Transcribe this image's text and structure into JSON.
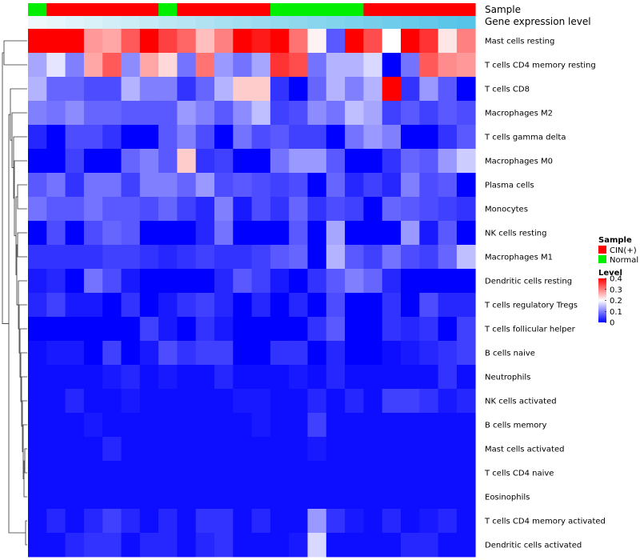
{
  "chart_data": {
    "type": "heatmap",
    "title": "",
    "annotation_labels": {
      "sample": "Sample",
      "gene_expression": "Gene expression level"
    },
    "columns": 24,
    "sample_groups": [
      "N",
      "C",
      "C",
      "C",
      "C",
      "C",
      "C",
      "N",
      "C",
      "C",
      "C",
      "C",
      "C",
      "N",
      "N",
      "N",
      "N",
      "N",
      "C",
      "C",
      "C",
      "C",
      "C",
      "C"
    ],
    "group_colors": {
      "C": "#ff0000",
      "N": "#00ee00"
    },
    "expression_gradient": [
      "#eef8fc",
      "#9fdcef",
      "#56c4e8"
    ],
    "rows": [
      "Mast cells resting",
      "T cells CD4 memory resting",
      "T cells CD8",
      "Macrophages M2",
      "T cells gamma delta",
      "Macrophages M0",
      "Plasma cells",
      "Monocytes",
      "NK cells resting",
      "Macrophages M1",
      "Dendritic cells resting",
      "T cells regulatory  Tregs",
      "T cells follicular helper",
      "B cells naive",
      "Neutrophils",
      "NK cells activated",
      "B cells memory",
      "Mast cells activated",
      "T cells CD4 naive",
      "Eosinophils",
      "T cells CD4 memory activated",
      "Dendritic cells activated"
    ],
    "values": [
      [
        0.4,
        0.4,
        0.4,
        0.28,
        0.27,
        0.33,
        0.4,
        0.35,
        0.32,
        0.25,
        0.3,
        0.4,
        0.38,
        0.4,
        0.31,
        0.21,
        0.07,
        0.4,
        0.34,
        0.2,
        0.4,
        0.36,
        0.22,
        0.3
      ],
      [
        0.13,
        0.18,
        0.1,
        0.27,
        0.33,
        0.11,
        0.27,
        0.23,
        0.09,
        0.31,
        0.12,
        0.09,
        0.13,
        0.36,
        0.34,
        0.09,
        0.14,
        0.14,
        0.17,
        0.0,
        0.09,
        0.33,
        0.29,
        0.28
      ],
      [
        0.14,
        0.08,
        0.08,
        0.06,
        0.06,
        0.14,
        0.1,
        0.1,
        0.04,
        0.08,
        0.14,
        0.24,
        0.24,
        0.04,
        0.0,
        0.08,
        0.14,
        0.1,
        0.14,
        0.4,
        0.04,
        0.12,
        0.07,
        0.0
      ],
      [
        0.1,
        0.09,
        0.11,
        0.08,
        0.08,
        0.07,
        0.07,
        0.07,
        0.12,
        0.1,
        0.07,
        0.11,
        0.15,
        0.05,
        0.06,
        0.11,
        0.09,
        0.15,
        0.13,
        0.05,
        0.07,
        0.05,
        0.07,
        0.06
      ],
      [
        0.03,
        0.0,
        0.06,
        0.06,
        0.04,
        0.0,
        0.0,
        0.07,
        0.1,
        0.06,
        0.0,
        0.09,
        0.06,
        0.07,
        0.05,
        0.05,
        0.0,
        0.09,
        0.12,
        0.1,
        0.0,
        0.0,
        0.04,
        0.07
      ],
      [
        0.0,
        0.0,
        0.05,
        0.0,
        0.0,
        0.08,
        0.1,
        0.07,
        0.24,
        0.04,
        0.05,
        0.0,
        0.0,
        0.09,
        0.12,
        0.12,
        0.07,
        0.0,
        0.0,
        0.04,
        0.08,
        0.07,
        0.12,
        0.16
      ],
      [
        0.07,
        0.09,
        0.04,
        0.09,
        0.09,
        0.05,
        0.1,
        0.1,
        0.08,
        0.12,
        0.06,
        0.07,
        0.06,
        0.05,
        0.06,
        0.0,
        0.08,
        0.03,
        0.05,
        0.03,
        0.1,
        0.06,
        0.07,
        0.0
      ],
      [
        0.09,
        0.07,
        0.07,
        0.09,
        0.07,
        0.07,
        0.06,
        0.08,
        0.05,
        0.03,
        0.1,
        0.02,
        0.06,
        0.04,
        0.08,
        0.04,
        0.06,
        0.05,
        0.0,
        0.08,
        0.07,
        0.06,
        0.05,
        0.04
      ],
      [
        0.0,
        0.06,
        0.0,
        0.06,
        0.08,
        0.07,
        0.0,
        0.0,
        0.0,
        0.03,
        0.09,
        0.0,
        0.0,
        0.0,
        0.07,
        0.0,
        0.13,
        0.0,
        0.0,
        0.0,
        0.12,
        0.02,
        0.07,
        0.0
      ],
      [
        0.04,
        0.04,
        0.04,
        0.04,
        0.05,
        0.05,
        0.04,
        0.03,
        0.04,
        0.05,
        0.04,
        0.04,
        0.05,
        0.07,
        0.08,
        0.0,
        0.14,
        0.07,
        0.05,
        0.09,
        0.06,
        0.05,
        0.08,
        0.15
      ],
      [
        0.02,
        0.03,
        0.0,
        0.09,
        0.06,
        0.02,
        0.0,
        0.0,
        0.0,
        0.0,
        0.03,
        0.07,
        0.05,
        0.02,
        0.0,
        0.04,
        0.07,
        0.1,
        0.08,
        0.03,
        0.0,
        0.0,
        0.0,
        0.0
      ],
      [
        0.03,
        0.05,
        0.02,
        0.02,
        0.0,
        0.04,
        0.0,
        0.02,
        0.04,
        0.05,
        0.03,
        0.0,
        0.03,
        0.0,
        0.03,
        0.0,
        0.06,
        0.0,
        0.0,
        0.04,
        0.0,
        0.06,
        0.03,
        0.03
      ],
      [
        0.0,
        0.0,
        0.0,
        0.0,
        0.0,
        0.0,
        0.05,
        0.02,
        0.0,
        0.04,
        0.02,
        0.0,
        0.0,
        0.0,
        0.0,
        0.04,
        0.07,
        0.0,
        0.0,
        0.04,
        0.03,
        0.04,
        0.0,
        0.05
      ],
      [
        0.01,
        0.02,
        0.02,
        0.0,
        0.05,
        0.0,
        0.02,
        0.06,
        0.04,
        0.05,
        0.05,
        0.0,
        0.0,
        0.04,
        0.04,
        0.0,
        0.03,
        0.0,
        0.0,
        0.01,
        0.02,
        0.03,
        0.04,
        0.05
      ],
      [
        0.01,
        0.01,
        0.01,
        0.01,
        0.02,
        0.03,
        0.01,
        0.02,
        0.01,
        0.01,
        0.03,
        0.01,
        0.01,
        0.01,
        0.02,
        0.01,
        0.03,
        0.01,
        0.01,
        0.01,
        0.01,
        0.01,
        0.04,
        0.01
      ],
      [
        0.01,
        0.01,
        0.03,
        0.01,
        0.01,
        0.02,
        0.01,
        0.01,
        0.01,
        0.01,
        0.01,
        0.02,
        0.02,
        0.01,
        0.01,
        0.03,
        0.01,
        0.03,
        0.01,
        0.05,
        0.05,
        0.04,
        0.02,
        0.03
      ],
      [
        0.01,
        0.01,
        0.01,
        0.02,
        0.01,
        0.01,
        0.01,
        0.01,
        0.01,
        0.01,
        0.01,
        0.01,
        0.02,
        0.01,
        0.01,
        0.05,
        0.01,
        0.01,
        0.01,
        0.01,
        0.01,
        0.01,
        0.01,
        0.01
      ],
      [
        0.01,
        0.01,
        0.01,
        0.01,
        0.03,
        0.01,
        0.01,
        0.01,
        0.01,
        0.01,
        0.01,
        0.01,
        0.01,
        0.01,
        0.01,
        0.02,
        0.01,
        0.01,
        0.01,
        0.01,
        0.01,
        0.01,
        0.01,
        0.01
      ],
      [
        0.01,
        0.01,
        0.01,
        0.01,
        0.01,
        0.01,
        0.01,
        0.01,
        0.01,
        0.01,
        0.01,
        0.01,
        0.01,
        0.01,
        0.01,
        0.01,
        0.01,
        0.01,
        0.01,
        0.01,
        0.01,
        0.01,
        0.01,
        0.01
      ],
      [
        0.01,
        0.01,
        0.01,
        0.01,
        0.01,
        0.01,
        0.01,
        0.01,
        0.01,
        0.01,
        0.01,
        0.01,
        0.01,
        0.01,
        0.01,
        0.01,
        0.01,
        0.01,
        0.01,
        0.01,
        0.01,
        0.01,
        0.01,
        0.01
      ],
      [
        0.01,
        0.03,
        0.01,
        0.03,
        0.05,
        0.03,
        0.01,
        0.03,
        0.01,
        0.04,
        0.04,
        0.01,
        0.03,
        0.01,
        0.01,
        0.12,
        0.04,
        0.02,
        0.01,
        0.03,
        0.01,
        0.02,
        0.03,
        0.01
      ],
      [
        0.01,
        0.01,
        0.03,
        0.04,
        0.04,
        0.01,
        0.03,
        0.03,
        0.01,
        0.03,
        0.04,
        0.01,
        0.01,
        0.01,
        0.02,
        0.17,
        0.01,
        0.01,
        0.01,
        0.01,
        0.03,
        0.03,
        0.01,
        0.01
      ]
    ],
    "colorscale": {
      "stops": [
        0,
        0.2,
        0.4
      ],
      "colors": [
        "#0000ff",
        "#ffffff",
        "#ff0000"
      ]
    },
    "legend": {
      "sample_title": "Sample",
      "sample_entries": [
        {
          "label": "CIN(+)",
          "color": "#ff0000"
        },
        {
          "label": "Normal",
          "color": "#00ee00"
        }
      ],
      "level_title": "Level",
      "level_ticks": [
        {
          "value": 0.4,
          "label": "0.4"
        },
        {
          "value": 0.3,
          "label": "0.3"
        },
        {
          "value": 0.2,
          "label": "0.2"
        },
        {
          "value": 0.1,
          "label": "0.1"
        },
        {
          "value": 0.0,
          "label": "0"
        }
      ],
      "placement": "right"
    }
  }
}
